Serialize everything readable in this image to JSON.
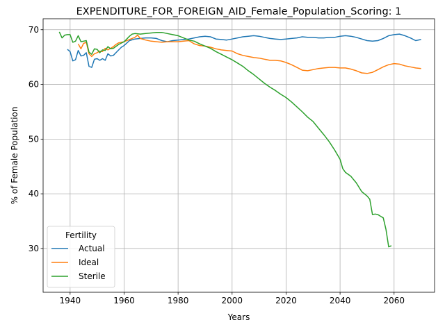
{
  "chart_data": {
    "type": "line",
    "title": "EXPENDITURE_FOR_FOREIGN_AID_Female_Population_Scoring: 1",
    "xlabel": "Years",
    "ylabel": "% of Female Population",
    "xlim": [
      1930,
      2075
    ],
    "ylim": [
      22,
      72
    ],
    "xticks": [
      1940,
      1960,
      1980,
      2000,
      2020,
      2040,
      2060
    ],
    "yticks": [
      30,
      40,
      50,
      60,
      70
    ],
    "grid": true,
    "legend": {
      "title": "Fertility",
      "position": "lower left"
    },
    "colors": {
      "Actual": "#1f77b4",
      "Ideal": "#ff7f0e",
      "Sterile": "#2ca02c"
    },
    "series": [
      {
        "name": "Actual",
        "x": [
          1939,
          1940,
          1941,
          1942,
          1943,
          1944,
          1945,
          1946,
          1947,
          1948,
          1949,
          1950,
          1951,
          1952,
          1953,
          1954,
          1955,
          1956,
          1957,
          1958,
          1959,
          1960,
          1962,
          1964,
          1966,
          1968,
          1970,
          1972,
          1974,
          1976,
          1978,
          1980,
          1982,
          1984,
          1986,
          1988,
          1990,
          1992,
          1994,
          1996,
          1998,
          2000,
          2002,
          2004,
          2006,
          2008,
          2010,
          2012,
          2014,
          2016,
          2018,
          2020,
          2022,
          2024,
          2026,
          2028,
          2030,
          2032,
          2034,
          2036,
          2038,
          2040,
          2042,
          2044,
          2046,
          2048,
          2050,
          2052,
          2054,
          2056,
          2058,
          2060,
          2062,
          2064,
          2066,
          2068,
          2070
        ],
        "values": [
          66.4,
          66.0,
          64.3,
          64.5,
          66.2,
          65.2,
          65.3,
          65.8,
          63.3,
          63.1,
          64.6,
          64.7,
          64.4,
          64.7,
          64.4,
          65.6,
          65.2,
          65.3,
          65.8,
          66.3,
          66.8,
          67.1,
          68.0,
          68.3,
          68.4,
          68.5,
          68.5,
          68.4,
          68.0,
          67.8,
          68.0,
          68.1,
          68.2,
          68.3,
          68.5,
          68.7,
          68.8,
          68.7,
          68.3,
          68.2,
          68.1,
          68.3,
          68.5,
          68.7,
          68.8,
          68.9,
          68.8,
          68.6,
          68.4,
          68.3,
          68.2,
          68.3,
          68.4,
          68.5,
          68.7,
          68.6,
          68.6,
          68.5,
          68.5,
          68.6,
          68.6,
          68.8,
          68.9,
          68.8,
          68.6,
          68.3,
          68.0,
          67.9,
          68.0,
          68.4,
          68.9,
          69.1,
          69.2,
          68.9,
          68.5,
          68.0,
          68.2
        ]
      },
      {
        "name": "Ideal",
        "x": [
          1943,
          1944,
          1945,
          1946,
          1947,
          1948,
          1949,
          1950,
          1951,
          1952,
          1953,
          1954,
          1955,
          1956,
          1957,
          1958,
          1960,
          1962,
          1964,
          1965,
          1966,
          1968,
          1970,
          1972,
          1974,
          1976,
          1978,
          1980,
          1982,
          1984,
          1986,
          1988,
          1990,
          1992,
          1994,
          1996,
          1998,
          2000,
          2002,
          2004,
          2006,
          2008,
          2010,
          2012,
          2014,
          2016,
          2018,
          2020,
          2022,
          2024,
          2026,
          2028,
          2030,
          2032,
          2034,
          2036,
          2038,
          2040,
          2042,
          2044,
          2046,
          2048,
          2050,
          2052,
          2054,
          2056,
          2058,
          2060,
          2062,
          2064,
          2066,
          2068,
          2070
        ],
        "values": [
          67.4,
          66.5,
          67.5,
          67.7,
          65.6,
          65.1,
          65.6,
          65.8,
          66.1,
          66.0,
          66.6,
          66.3,
          66.6,
          66.9,
          67.3,
          67.6,
          67.8,
          68.2,
          68.6,
          69.0,
          68.4,
          68.1,
          67.9,
          67.8,
          67.7,
          67.8,
          67.8,
          67.8,
          67.9,
          68.0,
          67.4,
          67.1,
          67.0,
          66.8,
          66.5,
          66.3,
          66.2,
          66.1,
          65.6,
          65.3,
          65.1,
          64.9,
          64.8,
          64.6,
          64.4,
          64.4,
          64.3,
          64.0,
          63.6,
          63.1,
          62.6,
          62.5,
          62.7,
          62.9,
          63.0,
          63.1,
          63.1,
          63.0,
          63.0,
          62.8,
          62.5,
          62.1,
          62.0,
          62.2,
          62.7,
          63.2,
          63.6,
          63.8,
          63.7,
          63.4,
          63.2,
          63.0,
          62.9
        ]
      },
      {
        "name": "Sterile",
        "x": [
          1936,
          1937,
          1938,
          1939,
          1940,
          1941,
          1942,
          1943,
          1944,
          1945,
          1946,
          1947,
          1948,
          1949,
          1950,
          1951,
          1952,
          1953,
          1954,
          1955,
          1956,
          1958,
          1960,
          1962,
          1963,
          1964,
          1966,
          1968,
          1970,
          1972,
          1974,
          1976,
          1978,
          1980,
          1982,
          1984,
          1986,
          1988,
          1990,
          1992,
          1994,
          1996,
          1998,
          2000,
          2002,
          2004,
          2006,
          2008,
          2010,
          2012,
          2014,
          2016,
          2018,
          2020,
          2022,
          2024,
          2026,
          2028,
          2030,
          2032,
          2034,
          2036,
          2038,
          2040,
          2041,
          2042,
          2044,
          2046,
          2048,
          2050,
          2051,
          2052,
          2053,
          2054,
          2055,
          2056,
          2057,
          2058,
          2059
        ],
        "values": [
          69.6,
          68.5,
          69.0,
          69.1,
          69.1,
          67.7,
          67.9,
          68.9,
          67.8,
          67.9,
          68.0,
          65.9,
          65.5,
          66.5,
          66.4,
          65.8,
          66.3,
          66.2,
          66.9,
          66.5,
          66.6,
          67.3,
          67.8,
          68.8,
          69.2,
          69.3,
          69.2,
          69.3,
          69.4,
          69.5,
          69.5,
          69.3,
          69.1,
          68.9,
          68.5,
          68.1,
          67.9,
          67.4,
          67.0,
          66.6,
          66.0,
          65.5,
          65.0,
          64.5,
          63.9,
          63.3,
          62.5,
          61.8,
          61.0,
          60.2,
          59.5,
          58.9,
          58.2,
          57.6,
          56.8,
          55.9,
          55.0,
          54.0,
          53.2,
          52.0,
          50.8,
          49.5,
          48.0,
          46.3,
          44.6,
          43.9,
          43.2,
          42.0,
          40.4,
          39.6,
          39.0,
          36.2,
          36.3,
          36.2,
          35.9,
          35.6,
          33.5,
          30.3,
          30.5
        ]
      }
    ]
  }
}
